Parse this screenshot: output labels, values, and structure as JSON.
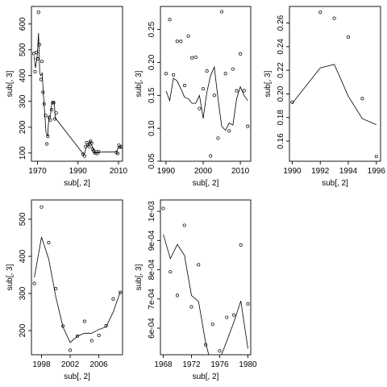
{
  "colors": {
    "axis": "#000000",
    "background": "#ffffff",
    "series": "#000000"
  },
  "chart_data": [
    {
      "type": "scatter",
      "xlabel": "sub[, 2]",
      "ylabel": "sub[, 3]",
      "xlim": [
        1967,
        2012
      ],
      "ylim": [
        68,
        668
      ],
      "x_ticks": [
        1970,
        1990,
        2010
      ],
      "x_tick_labels": [
        "1970",
        "1990",
        "2010"
      ],
      "y_ticks": [
        100,
        200,
        300,
        400,
        500,
        600
      ],
      "y_tick_labels": [
        "100",
        "200",
        "300",
        "400",
        "500",
        "600"
      ],
      "points": [
        [
          1968.2,
          485
        ],
        [
          1968.8,
          415
        ],
        [
          1969.5,
          490
        ],
        [
          1970.0,
          465
        ],
        [
          1970.5,
          645
        ],
        [
          1971.0,
          520
        ],
        [
          1971.7,
          385
        ],
        [
          1972.2,
          455
        ],
        [
          1972.7,
          335
        ],
        [
          1973.3,
          290
        ],
        [
          1974.0,
          245
        ],
        [
          1974.6,
          135
        ],
        [
          1975.1,
          165
        ],
        [
          1975.8,
          238
        ],
        [
          1976.4,
          228
        ],
        [
          1977.0,
          268
        ],
        [
          1977.5,
          295
        ],
        [
          1978.0,
          295
        ],
        [
          1978.6,
          232
        ],
        [
          1979.2,
          255
        ],
        [
          1992.5,
          95
        ],
        [
          1993.2,
          88
        ],
        [
          1993.7,
          125
        ],
        [
          1994.3,
          140
        ],
        [
          1995.0,
          132
        ],
        [
          1995.5,
          125
        ],
        [
          1996.2,
          145
        ],
        [
          1996.7,
          138
        ],
        [
          1997.2,
          115
        ],
        [
          1997.8,
          108
        ],
        [
          1998.3,
          100
        ],
        [
          1999.0,
          105
        ],
        [
          1999.5,
          98
        ],
        [
          2000.2,
          105
        ],
        [
          2009.0,
          102
        ],
        [
          2009.6,
          98
        ],
        [
          2010.2,
          130
        ],
        [
          2010.7,
          122
        ],
        [
          2011.3,
          125
        ]
      ],
      "trend": [
        [
          1968.3,
          475
        ],
        [
          1969.0,
          430
        ],
        [
          1969.8,
          470
        ],
        [
          1970.5,
          565
        ],
        [
          1971.1,
          410
        ],
        [
          1971.6,
          400
        ],
        [
          1972.3,
          410
        ],
        [
          1972.9,
          330
        ],
        [
          1973.5,
          260
        ],
        [
          1974.2,
          180
        ],
        [
          1975.0,
          165
        ],
        [
          1975.6,
          238
        ],
        [
          1976.4,
          245
        ],
        [
          1977.0,
          290
        ],
        [
          1977.7,
          298
        ],
        [
          1978.3,
          292
        ],
        [
          1978.8,
          232
        ],
        [
          1979.4,
          230
        ],
        [
          1993.0,
          92
        ],
        [
          1994.0,
          120
        ],
        [
          1995.0,
          130
        ],
        [
          1996.0,
          145
        ],
        [
          1997.0,
          125
        ],
        [
          1998.0,
          100
        ],
        [
          1999.0,
          100
        ],
        [
          2000.0,
          103
        ],
        [
          2009.0,
          105
        ],
        [
          2010.0,
          125
        ],
        [
          2011.3,
          123
        ]
      ]
    },
    {
      "type": "scatter",
      "xlabel": "sub[, 2]",
      "ylabel": "sub[, 3]",
      "xlim": [
        1988.5,
        2012.8
      ],
      "ylim": [
        0.05,
        0.285
      ],
      "x_ticks": [
        1990,
        2000,
        2010
      ],
      "x_tick_labels": [
        "1990",
        "2000",
        "2010"
      ],
      "y_ticks": [
        0.05,
        0.1,
        0.15,
        0.2,
        0.25
      ],
      "y_tick_labels": [
        "0.05",
        "0.10",
        "0.15",
        "0.20",
        "0.25"
      ],
      "points": [
        [
          1990.0,
          0.183
        ],
        [
          1991.0,
          0.265
        ],
        [
          1992.0,
          0.181
        ],
        [
          1993.0,
          0.232
        ],
        [
          1994.0,
          0.232
        ],
        [
          1995.0,
          0.165
        ],
        [
          1996.0,
          0.24
        ],
        [
          1997.0,
          0.207
        ],
        [
          1998.0,
          0.208
        ],
        [
          1999.0,
          0.13
        ],
        [
          2000.0,
          0.16
        ],
        [
          2001.0,
          0.187
        ],
        [
          2002.0,
          0.058
        ],
        [
          2003.0,
          0.15
        ],
        [
          2004.0,
          0.085
        ],
        [
          2005.0,
          0.277
        ],
        [
          2006.0,
          0.183
        ],
        [
          2007.0,
          0.096
        ],
        [
          2008.0,
          0.19
        ],
        [
          2009.0,
          0.157
        ],
        [
          2010.0,
          0.213
        ],
        [
          2011.0,
          0.157
        ],
        [
          2012.0,
          0.103
        ]
      ],
      "trend": [
        [
          1990.0,
          0.157
        ],
        [
          1991.0,
          0.142
        ],
        [
          1992.0,
          0.176
        ],
        [
          1993.0,
          0.172
        ],
        [
          1994.0,
          0.16
        ],
        [
          1995.0,
          0.147
        ],
        [
          1996.0,
          0.145
        ],
        [
          1997.0,
          0.138
        ],
        [
          1998.0,
          0.138
        ],
        [
          1999.0,
          0.15
        ],
        [
          2000.0,
          0.115
        ],
        [
          2001.0,
          0.155
        ],
        [
          2002.0,
          0.18
        ],
        [
          2003.0,
          0.193
        ],
        [
          2004.0,
          0.145
        ],
        [
          2005.0,
          0.103
        ],
        [
          2006.0,
          0.097
        ],
        [
          2007.0,
          0.108
        ],
        [
          2008.0,
          0.105
        ],
        [
          2009.0,
          0.145
        ],
        [
          2010.0,
          0.163
        ],
        [
          2011.0,
          0.15
        ],
        [
          2012.0,
          0.142
        ]
      ]
    },
    {
      "type": "scatter",
      "xlabel": "sub[, 2]",
      "ylabel": "sub[, 3]",
      "xlim": [
        1989.8,
        1996.3
      ],
      "ylim": [
        0.143,
        0.274
      ],
      "x_ticks": [
        1990,
        1992,
        1994,
        1996
      ],
      "x_tick_labels": [
        "1990",
        "1992",
        "1994",
        "1996"
      ],
      "y_ticks": [
        0.16,
        0.18,
        0.2,
        0.22,
        0.24,
        0.26
      ],
      "y_tick_labels": [
        "0.16",
        "0.18",
        "0.20",
        "0.22",
        "0.24",
        "0.26"
      ],
      "points": [
        [
          1990.0,
          0.193
        ],
        [
          1992.0,
          0.269
        ],
        [
          1993.0,
          0.264
        ],
        [
          1994.0,
          0.248
        ],
        [
          1995.0,
          0.196
        ],
        [
          1996.0,
          0.147
        ]
      ],
      "trend": [
        [
          1990.0,
          0.192
        ],
        [
          1992.0,
          0.222
        ],
        [
          1993.0,
          0.225
        ],
        [
          1994.0,
          0.198
        ],
        [
          1995.0,
          0.179
        ],
        [
          1996.0,
          0.174
        ]
      ]
    },
    {
      "type": "scatter",
      "xlabel": "sub[, 2]",
      "ylabel": "sub[, 3]",
      "xlim": [
        1996.6,
        2009.3
      ],
      "ylim": [
        135,
        552
      ],
      "x_ticks": [
        1998,
        2002,
        2006
      ],
      "x_tick_labels": [
        "1998",
        "2002",
        "2006"
      ],
      "y_ticks": [
        200,
        300,
        400,
        500
      ],
      "y_tick_labels": [
        "200",
        "300",
        "400",
        "500"
      ],
      "points": [
        [
          1997.0,
          327
        ],
        [
          1998.0,
          533
        ],
        [
          1999.0,
          437
        ],
        [
          2000.0,
          313
        ],
        [
          2001.0,
          212
        ],
        [
          2002.0,
          147
        ],
        [
          2003.0,
          185
        ],
        [
          2004.0,
          225
        ],
        [
          2005.0,
          173
        ],
        [
          2006.0,
          187
        ],
        [
          2007.0,
          213
        ],
        [
          2008.0,
          285
        ],
        [
          2009.0,
          303
        ]
      ],
      "trend": [
        [
          1997.0,
          343
        ],
        [
          1998.0,
          452
        ],
        [
          1999.0,
          393
        ],
        [
          2000.0,
          290
        ],
        [
          2001.0,
          210
        ],
        [
          2002.0,
          168
        ],
        [
          2003.0,
          185
        ],
        [
          2004.0,
          193
        ],
        [
          2005.0,
          193
        ],
        [
          2006.0,
          203
        ],
        [
          2007.0,
          210
        ],
        [
          2008.0,
          250
        ],
        [
          2009.0,
          305
        ]
      ]
    },
    {
      "type": "scatter",
      "xlabel": "sub[, 2]",
      "ylabel": "sub[, 3]",
      "xlim": [
        1967.6,
        1980.4
      ],
      "ylim": [
        0.000509,
        0.001039
      ],
      "x_ticks": [
        1968,
        1972,
        1976,
        1980
      ],
      "x_tick_labels": [
        "1968",
        "1972",
        "1976",
        "1980"
      ],
      "y_ticks": [
        0.0006,
        0.0007,
        0.0008,
        0.0009,
        0.001
      ],
      "y_tick_labels": [
        "6e-04",
        "7e-04",
        "8e-04",
        "9e-04",
        "1e-03"
      ],
      "points": [
        [
          1968.0,
          0.00101
        ],
        [
          1969.0,
          0.000793
        ],
        [
          1970.0,
          0.000712
        ],
        [
          1971.0,
          0.000952
        ],
        [
          1972.0,
          0.000673
        ],
        [
          1973.0,
          0.000817
        ],
        [
          1974.0,
          0.000543
        ],
        [
          1975.0,
          0.000613
        ],
        [
          1976.0,
          0.000522
        ],
        [
          1977.0,
          0.000637
        ],
        [
          1978.0,
          0.000645
        ],
        [
          1979.0,
          0.000885
        ],
        [
          1980.0,
          0.000683
        ]
      ],
      "trend": [
        [
          1968.0,
          0.000921
        ],
        [
          1969.0,
          0.000838
        ],
        [
          1970.0,
          0.000887
        ],
        [
          1971.0,
          0.000849
        ],
        [
          1972.0,
          0.000712
        ],
        [
          1973.0,
          0.000691
        ],
        [
          1974.0,
          0.000551
        ],
        [
          1975.0,
          0.000458
        ],
        [
          1976.0,
          0.000493
        ],
        [
          1977.0,
          0.000555
        ],
        [
          1978.0,
          0.00062
        ],
        [
          1979.0,
          0.000693
        ],
        [
          1980.0,
          0.00053
        ]
      ]
    }
  ]
}
